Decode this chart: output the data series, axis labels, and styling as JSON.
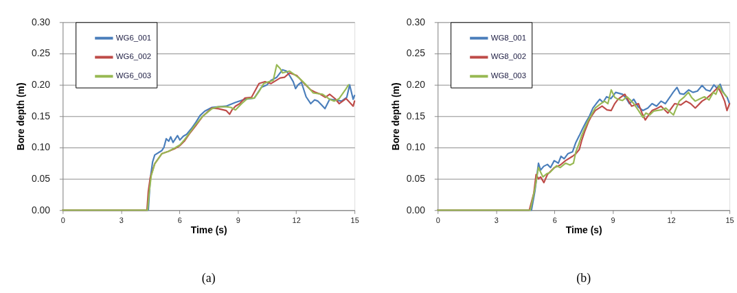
{
  "chart_data": [
    {
      "type": "line",
      "xlabel": "Time (s)",
      "ylabel": "Bore depth (m)",
      "annotations": [
        "(a)"
      ],
      "xlim": [
        0,
        15
      ],
      "xticks": [
        0,
        3,
        6,
        9,
        12,
        15
      ],
      "ylim": [
        0,
        0.3
      ],
      "yticks": [
        {
          "value": 0,
          "label": "0.00"
        },
        {
          "value": 0.05,
          "label": "0.05"
        },
        {
          "value": 0.1,
          "label": "0.10"
        },
        {
          "value": 0.15,
          "label": "0.15"
        },
        {
          "value": 0.2,
          "label": "0.20"
        },
        {
          "value": 0.25,
          "label": "0.25"
        },
        {
          "value": 0.3,
          "label": "0.30"
        }
      ],
      "grid": "y",
      "legend": "top left",
      "series": [
        {
          "name": "WG6_001",
          "color": "#4a7ebb",
          "x": [
            0,
            4.4,
            4.5,
            4.62,
            4.73,
            5.09,
            5.2,
            5.32,
            5.45,
            5.55,
            5.67,
            5.9,
            6.02,
            6.2,
            6.37,
            6.61,
            6.84,
            7.06,
            7.3,
            7.67,
            8.0,
            8.4,
            8.88,
            9.37,
            9.85,
            10.21,
            10.5,
            10.7,
            11.0,
            11.3,
            11.5,
            11.66,
            11.85,
            11.97,
            12.1,
            12.27,
            12.51,
            12.75,
            12.95,
            13.12,
            13.3,
            13.48,
            13.72,
            14.0,
            14.33,
            14.6,
            14.75,
            14.93,
            15
          ],
          "values": [
            0,
            0,
            0.05,
            0.077,
            0.088,
            0.095,
            0.1,
            0.114,
            0.11,
            0.117,
            0.108,
            0.119,
            0.112,
            0.118,
            0.121,
            0.13,
            0.14,
            0.151,
            0.158,
            0.164,
            0.165,
            0.166,
            0.172,
            0.177,
            0.179,
            0.196,
            0.2,
            0.207,
            0.212,
            0.224,
            0.222,
            0.215,
            0.205,
            0.194,
            0.2,
            0.204,
            0.181,
            0.17,
            0.176,
            0.174,
            0.168,
            0.162,
            0.177,
            0.176,
            0.174,
            0.18,
            0.2,
            0.177,
            0.183
          ]
        },
        {
          "name": "WG6_002",
          "color": "#be4b48",
          "x": [
            0,
            4.33,
            4.4,
            4.5,
            4.73,
            5.09,
            5.44,
            5.75,
            6.02,
            6.25,
            6.49,
            6.84,
            7.2,
            7.67,
            8.0,
            8.4,
            8.58,
            8.7,
            8.88,
            9.1,
            9.37,
            9.7,
            10.09,
            10.4,
            10.7,
            11.18,
            11.4,
            11.66,
            12.03,
            12.39,
            12.75,
            13.0,
            13.24,
            13.5,
            13.72,
            14.0,
            14.21,
            14.57,
            14.93,
            15
          ],
          "values": [
            0,
            0,
            0.03,
            0.052,
            0.074,
            0.09,
            0.094,
            0.098,
            0.103,
            0.11,
            0.121,
            0.135,
            0.15,
            0.163,
            0.162,
            0.159,
            0.153,
            0.16,
            0.166,
            0.17,
            0.179,
            0.18,
            0.202,
            0.205,
            0.202,
            0.211,
            0.212,
            0.219,
            0.215,
            0.203,
            0.192,
            0.188,
            0.185,
            0.18,
            0.185,
            0.178,
            0.17,
            0.178,
            0.166,
            0.174
          ]
        },
        {
          "name": "WG6_003",
          "color": "#98b954",
          "x": [
            0,
            4.36,
            4.45,
            4.55,
            4.73,
            5.09,
            5.44,
            5.8,
            6.02,
            6.25,
            6.49,
            6.84,
            7.2,
            7.67,
            8.0,
            8.4,
            8.64,
            8.88,
            9.2,
            9.49,
            9.85,
            10.1,
            10.33,
            10.6,
            10.82,
            11.0,
            11.18,
            11.3,
            11.66,
            12.15,
            12.51,
            12.88,
            13.36,
            13.72,
            13.96,
            14.21,
            14.57,
            14.69
          ],
          "values": [
            0,
            0,
            0.03,
            0.055,
            0.074,
            0.09,
            0.094,
            0.1,
            0.104,
            0.112,
            0.122,
            0.137,
            0.15,
            0.162,
            0.165,
            0.165,
            0.164,
            0.16,
            0.17,
            0.178,
            0.179,
            0.19,
            0.202,
            0.205,
            0.207,
            0.232,
            0.226,
            0.219,
            0.222,
            0.211,
            0.2,
            0.187,
            0.185,
            0.177,
            0.174,
            0.178,
            0.194,
            0.2
          ]
        }
      ]
    },
    {
      "type": "line",
      "xlabel": "Time (s)",
      "ylabel": "Bore depth (m)",
      "annotations": [
        "(b)"
      ],
      "xlim": [
        0,
        15
      ],
      "xticks": [
        0,
        3,
        6,
        9,
        12,
        15
      ],
      "ylim": [
        0,
        0.3
      ],
      "yticks": [
        {
          "value": 0,
          "label": "0.00"
        },
        {
          "value": 0.05,
          "label": "0.05"
        },
        {
          "value": 0.1,
          "label": "0.10"
        },
        {
          "value": 0.15,
          "label": "0.15"
        },
        {
          "value": 0.2,
          "label": "0.20"
        },
        {
          "value": 0.25,
          "label": "0.25"
        },
        {
          "value": 0.3,
          "label": "0.30"
        }
      ],
      "grid": "y",
      "legend": "top left",
      "series": [
        {
          "name": "WG8_001",
          "color": "#4a7ebb",
          "x": [
            0,
            4.82,
            5.0,
            5.18,
            5.29,
            5.45,
            5.64,
            5.8,
            5.99,
            6.2,
            6.34,
            6.5,
            6.69,
            6.93,
            7.1,
            7.28,
            7.45,
            7.63,
            7.8,
            7.98,
            8.15,
            8.33,
            8.5,
            8.68,
            8.9,
            9.15,
            9.5,
            9.7,
            9.85,
            10.08,
            10.3,
            10.55,
            10.8,
            11.02,
            11.25,
            11.48,
            11.7,
            11.95,
            12.1,
            12.3,
            12.45,
            12.65,
            12.9,
            13.12,
            13.35,
            13.59,
            13.8,
            14.0,
            14.2,
            14.35,
            14.52,
            14.65,
            14.75,
            14.88,
            15
          ],
          "values": [
            0,
            0,
            0.031,
            0.075,
            0.064,
            0.07,
            0.073,
            0.068,
            0.079,
            0.075,
            0.086,
            0.082,
            0.09,
            0.093,
            0.108,
            0.119,
            0.13,
            0.141,
            0.15,
            0.163,
            0.17,
            0.177,
            0.172,
            0.181,
            0.178,
            0.188,
            0.185,
            0.178,
            0.17,
            0.177,
            0.165,
            0.159,
            0.163,
            0.17,
            0.166,
            0.174,
            0.17,
            0.181,
            0.188,
            0.196,
            0.186,
            0.185,
            0.192,
            0.188,
            0.19,
            0.199,
            0.192,
            0.19,
            0.2,
            0.195,
            0.201,
            0.19,
            0.185,
            0.18,
            0.17
          ]
        },
        {
          "name": "WG8_002",
          "color": "#be4b48",
          "x": [
            0,
            4.71,
            4.94,
            5.06,
            5.18,
            5.29,
            5.46,
            5.64,
            5.8,
            5.99,
            6.3,
            6.57,
            6.93,
            7.1,
            7.28,
            7.4,
            7.55,
            7.75,
            7.9,
            8.1,
            8.45,
            8.7,
            8.92,
            9.1,
            9.27,
            9.62,
            9.8,
            9.97,
            10.32,
            10.5,
            10.67,
            10.85,
            11.02,
            11.25,
            11.48,
            11.83,
            12.18,
            12.5,
            12.77,
            13.0,
            13.24,
            13.59,
            13.8,
            14.06,
            14.41,
            14.6,
            14.75,
            14.87,
            15
          ],
          "values": [
            0,
            0,
            0.027,
            0.057,
            0.05,
            0.053,
            0.044,
            0.057,
            0.062,
            0.068,
            0.072,
            0.079,
            0.086,
            0.09,
            0.097,
            0.111,
            0.125,
            0.141,
            0.15,
            0.159,
            0.166,
            0.16,
            0.159,
            0.17,
            0.177,
            0.185,
            0.175,
            0.166,
            0.17,
            0.155,
            0.144,
            0.152,
            0.159,
            0.162,
            0.166,
            0.155,
            0.17,
            0.168,
            0.174,
            0.17,
            0.163,
            0.174,
            0.178,
            0.185,
            0.196,
            0.185,
            0.174,
            0.159,
            0.17
          ]
        },
        {
          "name": "WG8_003",
          "color": "#98b954",
          "x": [
            0,
            4.76,
            5.0,
            5.18,
            5.3,
            5.41,
            5.6,
            5.76,
            5.95,
            6.11,
            6.3,
            6.57,
            6.8,
            6.98,
            7.1,
            7.25,
            7.4,
            7.55,
            7.75,
            7.9,
            8.1,
            8.3,
            8.57,
            8.75,
            8.92,
            9.1,
            9.27,
            9.5,
            9.73,
            9.9,
            10.08,
            10.3,
            10.55,
            10.7,
            10.9,
            11.1,
            11.25,
            11.5,
            11.72,
            11.9,
            12.12,
            12.25,
            12.42,
            12.65,
            12.89,
            13.05,
            13.24,
            13.5,
            13.71,
            13.95,
            14.17,
            14.3,
            14.47,
            14.6,
            14.75,
            14.85
          ],
          "values": [
            0,
            0,
            0.035,
            0.068,
            0.06,
            0.053,
            0.058,
            0.06,
            0.066,
            0.071,
            0.068,
            0.075,
            0.072,
            0.075,
            0.093,
            0.105,
            0.119,
            0.13,
            0.144,
            0.152,
            0.163,
            0.168,
            0.174,
            0.17,
            0.192,
            0.18,
            0.177,
            0.175,
            0.181,
            0.176,
            0.17,
            0.16,
            0.148,
            0.155,
            0.152,
            0.158,
            0.159,
            0.16,
            0.163,
            0.158,
            0.152,
            0.162,
            0.174,
            0.18,
            0.188,
            0.18,
            0.174,
            0.178,
            0.181,
            0.176,
            0.188,
            0.185,
            0.199,
            0.19,
            0.185,
            0.181
          ]
        }
      ]
    }
  ]
}
